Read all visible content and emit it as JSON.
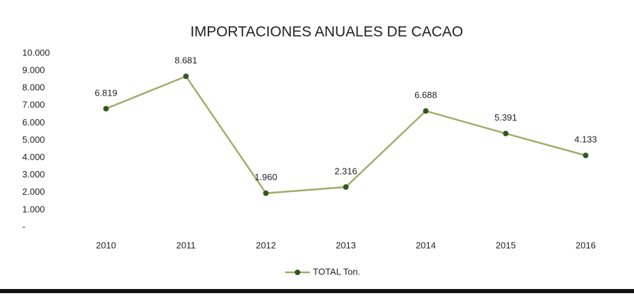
{
  "chart_data": {
    "type": "line",
    "title": "IMPORTACIONES  ANUALES DE CACAO",
    "categories": [
      "2010",
      "2011",
      "2012",
      "2013",
      "2014",
      "2015",
      "2016"
    ],
    "series": [
      {
        "name": "TOTAL Ton.",
        "color": "#a3ab68",
        "marker_color": "#2f5a1e",
        "values": [
          6819,
          8681,
          1960,
          2316,
          6688,
          5391,
          4133
        ],
        "value_labels": [
          "6.819",
          "8.681",
          "1.960",
          "2.316",
          "6.688",
          "5.391",
          "4.133"
        ]
      }
    ],
    "ylim": [
      0,
      10000
    ],
    "yticks": [
      {
        "value": 0,
        "label": "-"
      },
      {
        "value": 1000,
        "label": "1.000"
      },
      {
        "value": 2000,
        "label": "2.000"
      },
      {
        "value": 3000,
        "label": "3.000"
      },
      {
        "value": 4000,
        "label": "4.000"
      },
      {
        "value": 5000,
        "label": "5.000"
      },
      {
        "value": 6000,
        "label": "6.000"
      },
      {
        "value": 7000,
        "label": "7.000"
      },
      {
        "value": 8000,
        "label": "8.000"
      },
      {
        "value": 9000,
        "label": "9.000"
      },
      {
        "value": 10000,
        "label": "10.000"
      }
    ],
    "grid": false,
    "legend": "bottom"
  }
}
